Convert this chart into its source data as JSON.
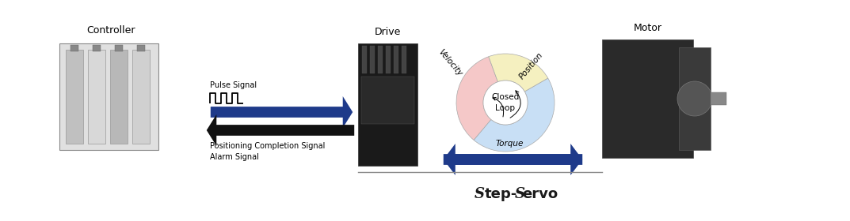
{
  "title_part1": "S",
  "title_part2": "tep-",
  "title_part3": "S",
  "title_part4": "ervo",
  "controller_label": "Controller",
  "drive_label": "Drive",
  "motor_label": "Motor",
  "pulse_signal_label": "Pulse Signal",
  "positioning_label": "Positioning Completion Signal\nAlarm Signal",
  "closed_loop_label": "Closed\nLoop",
  "velocity_label": "Velocity",
  "position_label": "Position",
  "torque_label": "Torque",
  "bg_color": "#ffffff",
  "arrow_right_color": "#1e3a8a",
  "arrow_left_color": "#111111",
  "arrow_double_color": "#1e3a8a",
  "wedge_velocity_color": "#f5c8c8",
  "wedge_position_color": "#c8dff5",
  "wedge_torque_color": "#f5f0c0",
  "wedge_edge_color": "#aaaaaa",
  "circle_inner_color": "#ffffff",
  "line_color": "#888888",
  "label_fontsize": 9,
  "signal_fontsize": 7,
  "loop_label_fontsize": 7.5,
  "segment_label_fontsize": 7.5,
  "title_fontsize": 13
}
